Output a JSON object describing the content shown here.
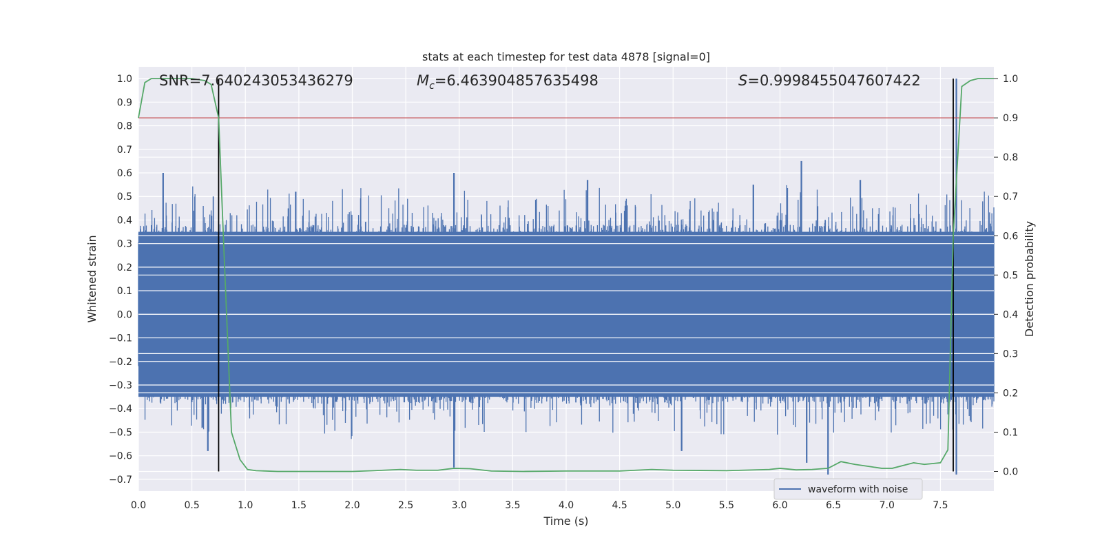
{
  "chart_data": {
    "type": "line",
    "title": "stats at each timestep for test data 4878 [signal=0]",
    "xlabel": "Time (s)",
    "ylabel": "Whitened strain",
    "ylabel_right": "Detection probability",
    "xlim": [
      0.0,
      8.0
    ],
    "ylim": [
      -0.75,
      1.05
    ],
    "ylim_right": [
      -0.05,
      1.03
    ],
    "xticks": [
      "0.0",
      "0.5",
      "1.0",
      "1.5",
      "2.0",
      "2.5",
      "3.0",
      "3.5",
      "4.0",
      "4.5",
      "5.0",
      "5.5",
      "6.0",
      "6.5",
      "7.0",
      "7.5"
    ],
    "yticks": [
      "1.0",
      "0.9",
      "0.8",
      "0.7",
      "0.6",
      "0.5",
      "0.4",
      "0.3",
      "0.2",
      "0.1",
      "0.0",
      "−0.1",
      "−0.2",
      "−0.3",
      "−0.4",
      "−0.5",
      "−0.6",
      "−0.7"
    ],
    "yticks_right": [
      "1.0",
      "0.9",
      "0.8",
      "0.7",
      "0.6",
      "0.5",
      "0.4",
      "0.3",
      "0.2",
      "0.1",
      "0.0"
    ],
    "annotations": {
      "snr": "SNR=7.640243053436279",
      "mc_prefix": "M",
      "mc_sub": "c",
      "mc_value": "=6.463904857635498",
      "s_prefix": "S",
      "s_value": "=0.9998455047607422"
    },
    "legend": {
      "entries": [
        "waveform with noise"
      ],
      "position": "lower-right"
    },
    "threshold": {
      "axis": "right",
      "value": 0.9,
      "color": "#c44e52"
    },
    "vertical_markers": {
      "x": [
        0.75,
        7.62
      ],
      "color": "#000000"
    },
    "series": [
      {
        "name": "waveform with noise",
        "axis": "left",
        "color": "#4c72b0",
        "band_min": -0.35,
        "band_max": 0.35,
        "notable_peaks": [
          {
            "x": 0.23,
            "y": 0.6
          },
          {
            "x": 0.7,
            "y": 0.5
          },
          {
            "x": 1.47,
            "y": 0.52
          },
          {
            "x": 2.95,
            "y": 0.6
          },
          {
            "x": 4.2,
            "y": 0.57
          },
          {
            "x": 6.2,
            "y": 0.65
          },
          {
            "x": 5.75,
            "y": 0.55
          },
          {
            "x": 6.75,
            "y": 0.57
          },
          {
            "x": 7.65,
            "y": 1.0
          }
        ],
        "notable_troughs": [
          {
            "x": 2.95,
            "y": -0.65
          },
          {
            "x": 5.08,
            "y": -0.58
          },
          {
            "x": 6.25,
            "y": -0.63
          },
          {
            "x": 6.45,
            "y": -0.68
          },
          {
            "x": 7.65,
            "y": -0.68
          },
          {
            "x": 0.65,
            "y": -0.58
          }
        ]
      },
      {
        "name": "detection probability",
        "axis": "right",
        "color": "#55a868",
        "x": [
          0.0,
          0.06,
          0.12,
          0.25,
          0.5,
          0.62,
          0.68,
          0.75,
          0.8,
          0.87,
          0.95,
          1.02,
          1.1,
          1.3,
          1.6,
          2.0,
          2.2,
          2.45,
          2.6,
          2.8,
          2.95,
          3.1,
          3.3,
          3.6,
          4.0,
          4.5,
          4.8,
          5.0,
          5.5,
          5.9,
          6.0,
          6.15,
          6.3,
          6.45,
          6.57,
          6.7,
          6.85,
          6.95,
          7.05,
          7.25,
          7.35,
          7.5,
          7.57,
          7.62,
          7.7,
          7.78,
          7.85,
          8.0
        ],
        "y": [
          0.9,
          0.99,
          1.0,
          1.0,
          1.0,
          0.995,
          0.985,
          0.9,
          0.56,
          0.1,
          0.03,
          0.005,
          0.002,
          0.0,
          0.0,
          0.0,
          0.002,
          0.005,
          0.003,
          0.003,
          0.008,
          0.007,
          0.001,
          0.0,
          0.001,
          0.001,
          0.005,
          0.003,
          0.002,
          0.005,
          0.008,
          0.004,
          0.005,
          0.008,
          0.025,
          0.018,
          0.012,
          0.008,
          0.008,
          0.022,
          0.018,
          0.022,
          0.055,
          0.6,
          0.98,
          0.995,
          1.0,
          1.0
        ]
      }
    ]
  }
}
